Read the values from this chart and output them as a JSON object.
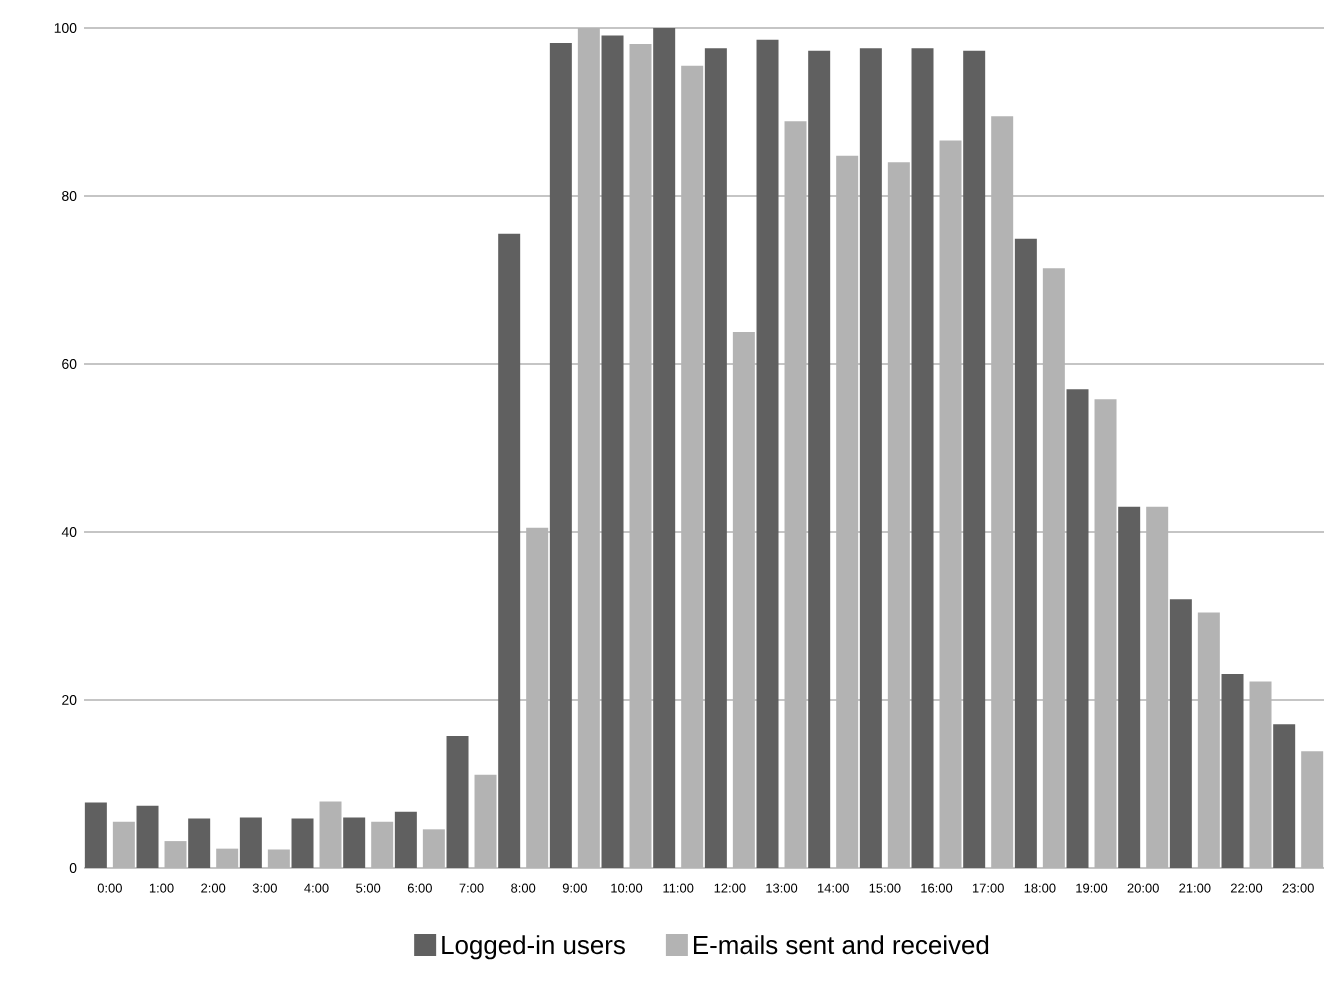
{
  "chart_data": {
    "type": "bar",
    "categories": [
      "0:00",
      "1:00",
      "2:00",
      "3:00",
      "4:00",
      "5:00",
      "6:00",
      "7:00",
      "8:00",
      "9:00",
      "10:00",
      "11:00",
      "12:00",
      "13:00",
      "14:00",
      "15:00",
      "16:00",
      "17:00",
      "18:00",
      "19:00",
      "20:00",
      "21:00",
      "22:00",
      "23:00"
    ],
    "series": [
      {
        "name": "Logged-in users",
        "color": "#606060",
        "values": [
          7.8,
          7.4,
          5.9,
          6.0,
          5.9,
          6.0,
          6.7,
          15.7,
          75.5,
          98.2,
          99.1,
          100,
          97.6,
          98.6,
          97.3,
          97.6,
          97.6,
          97.3,
          74.9,
          57.0,
          43.0,
          32.0,
          23.1,
          17.1
        ]
      },
      {
        "name": "E-mails sent and received",
        "color": "#b3b3b3",
        "values": [
          5.5,
          3.2,
          2.3,
          2.2,
          7.9,
          5.5,
          4.6,
          11.1,
          40.5,
          100,
          98.1,
          95.5,
          63.8,
          88.9,
          84.8,
          84.0,
          86.6,
          89.5,
          71.4,
          55.8,
          43.0,
          30.4,
          22.2,
          13.9
        ]
      }
    ],
    "ylim": [
      0,
      100
    ],
    "yticks": [
      0,
      20,
      40,
      60,
      80,
      100
    ],
    "grid": "y",
    "legend": "bottom"
  }
}
